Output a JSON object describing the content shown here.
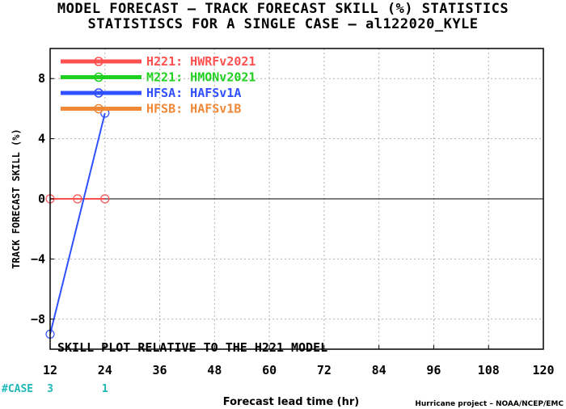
{
  "chart_data": {
    "type": "line",
    "title": "MODEL FORECAST – TRACK FORECAST SKILL (%) STATISTICS",
    "subtitle": "STATISTISCS FOR A SINGLE CASE – al122020_KYLE",
    "xlabel": "Forecast lead time (hr)",
    "ylabel": "TRACK FORECAST SKILL (%)",
    "xlim": [
      12,
      120
    ],
    "ylim": [
      -10,
      10
    ],
    "x_ticks": [
      "12",
      "24",
      "36",
      "48",
      "60",
      "72",
      "84",
      "96",
      "108",
      "120"
    ],
    "y_ticks": [
      "8",
      "4",
      "0",
      "−4",
      "−8"
    ],
    "y_tick_values": [
      8,
      4,
      0,
      -4,
      -8
    ],
    "grid": true,
    "legend_position": "top-left",
    "annotation": "SKILL PLOT RELATIVE TO THE H221 MODEL",
    "series": [
      {
        "name": "H221: HWRFv2021",
        "color": "#ff5050",
        "x": [
          12,
          18,
          24
        ],
        "y": [
          0,
          0,
          0
        ]
      },
      {
        "name": "M221: HMONv2021",
        "color": "#20d020",
        "x": [],
        "y": []
      },
      {
        "name": "HFSA: HAFSv1A",
        "color": "#3050ff",
        "x": [
          12,
          24
        ],
        "y": [
          -9,
          5.7
        ]
      },
      {
        "name": "HFSB: HAFSv1B",
        "color": "#f08838",
        "x": [],
        "y": []
      }
    ],
    "case_counts": {
      "label": "#CASE",
      "values": [
        {
          "x": 12,
          "count": "3"
        },
        {
          "x": 24,
          "count": "1"
        }
      ]
    }
  },
  "credit": "Hurricane project – NOAA/NCEP/EMC"
}
